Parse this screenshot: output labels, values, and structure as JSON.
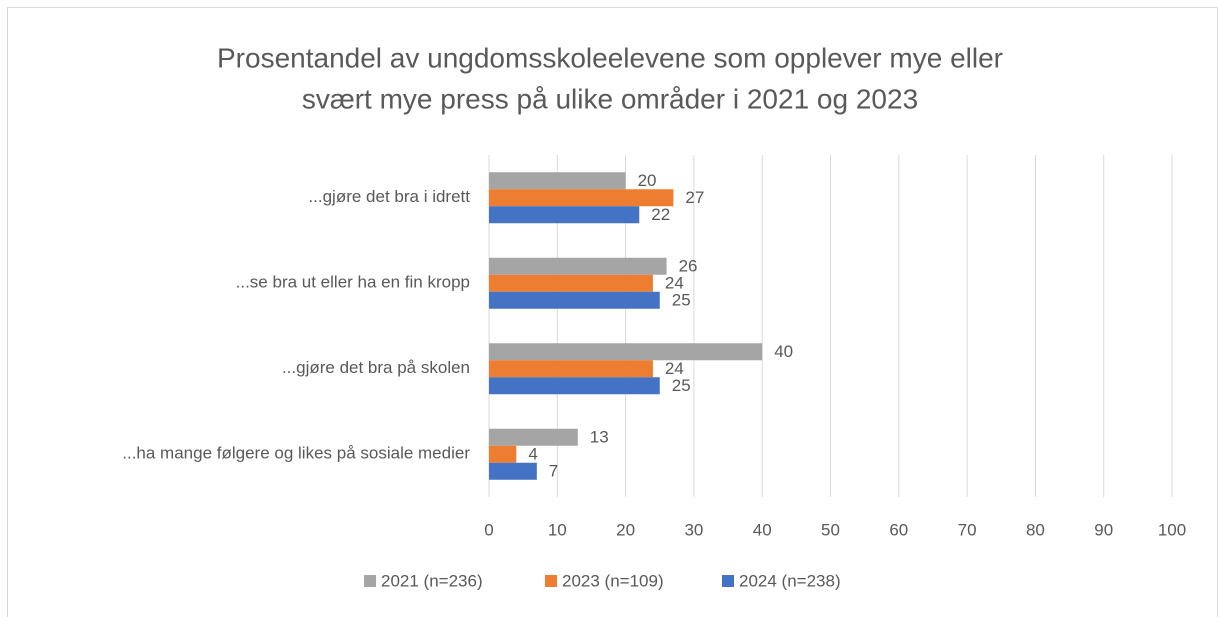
{
  "chart_data": {
    "type": "bar",
    "orientation": "horizontal",
    "title": [
      "Prosentandel av ungdomsskoleelevene som opplever mye eller",
      "svært mye press på ulike områder i 2021 og 2023"
    ],
    "categories": [
      "...gjøre det bra i idrett",
      "...se bra ut eller ha en fin kropp",
      "...gjøre det bra på skolen",
      "...ha mange følgere og likes på sosiale medier"
    ],
    "series": [
      {
        "name": "2021 (n=236)",
        "color": "#a5a5a5",
        "values": [
          20,
          26,
          40,
          13
        ]
      },
      {
        "name": "2023 (n=109)",
        "color": "#ed7d31",
        "values": [
          27,
          24,
          24,
          4
        ]
      },
      {
        "name": "2024 (n=238)",
        "color": "#4472c4",
        "values": [
          22,
          25,
          25,
          7
        ]
      }
    ],
    "xlim": [
      0,
      100
    ],
    "xticks": [
      0,
      10,
      20,
      30,
      40,
      50,
      60,
      70,
      80,
      90,
      100
    ],
    "grid": true,
    "legend": "bottom"
  }
}
